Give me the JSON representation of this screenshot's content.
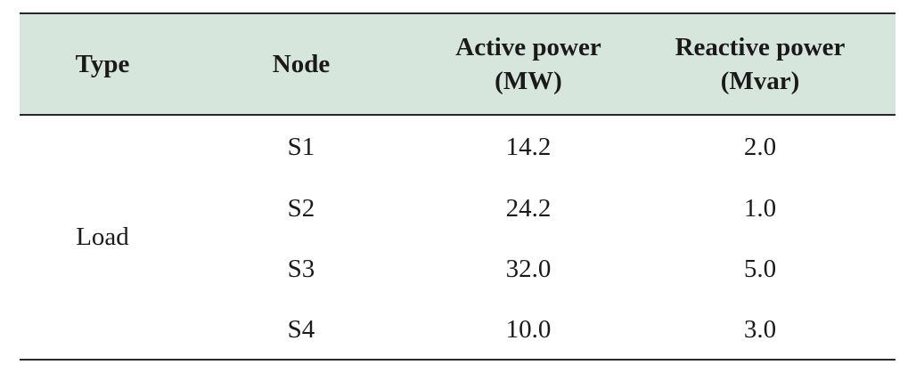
{
  "table": {
    "headers": {
      "type": "Type",
      "node": "Node",
      "active_line1": "Active power",
      "active_line2": "(MW)",
      "reactive_line1": "Reactive power",
      "reactive_line2": "(Mvar)"
    },
    "type_value": "Load",
    "rows": [
      {
        "node": "S1",
        "active": "14.2",
        "reactive": "2.0"
      },
      {
        "node": "S2",
        "active": "24.2",
        "reactive": "1.0"
      },
      {
        "node": "S3",
        "active": "32.0",
        "reactive": "5.0"
      },
      {
        "node": "S4",
        "active": "10.0",
        "reactive": "3.0"
      }
    ],
    "colors": {
      "header_background": "#d7e6dd",
      "rule": "#2a2a2a"
    }
  }
}
